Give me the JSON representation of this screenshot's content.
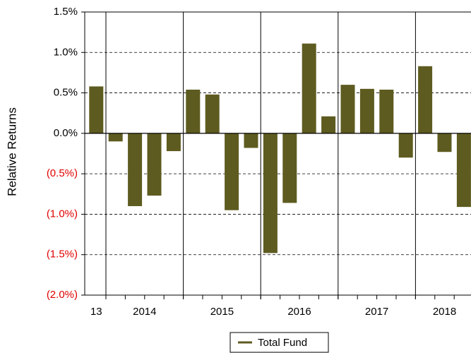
{
  "chart_data": {
    "type": "bar",
    "y_axis_label": "Relative Returns",
    "categories": [
      null,
      null,
      null,
      null,
      null,
      null,
      null,
      null,
      null,
      null,
      null,
      null,
      null,
      null,
      null,
      null,
      null,
      null,
      null,
      null
    ],
    "groups": [
      {
        "label": "13",
        "size": 1
      },
      {
        "label": "2014",
        "size": 4
      },
      {
        "label": "2015",
        "size": 4
      },
      {
        "label": "2016",
        "size": 4
      },
      {
        "label": "2017",
        "size": 4
      },
      {
        "label": "2018",
        "size": 3
      }
    ],
    "series": [
      {
        "name": "Total Fund",
        "color": "#5e5b20",
        "values": [
          0.58,
          -0.1,
          -0.9,
          -0.77,
          -0.22,
          0.54,
          0.48,
          -0.95,
          -0.18,
          -1.48,
          -0.86,
          1.11,
          0.21,
          0.6,
          0.55,
          0.54,
          -0.3,
          0.83,
          -0.23,
          -0.91
        ]
      }
    ],
    "ylim": [
      -2.0,
      1.5
    ],
    "yticks": [
      {
        "value": -2.0,
        "label": "(2.0%)"
      },
      {
        "value": -1.5,
        "label": "(1.5%)"
      },
      {
        "value": -1.0,
        "label": "(1.0%)"
      },
      {
        "value": -0.5,
        "label": "(0.5%)"
      },
      {
        "value": 0,
        "label": "0.0%"
      },
      {
        "value": 0.5,
        "label": "0.5%"
      },
      {
        "value": 1.0,
        "label": "1.0%"
      },
      {
        "value": 1.5,
        "label": "1.5%"
      }
    ],
    "negative_tick_color": "#e00000",
    "grid": true,
    "legend": "bottom"
  }
}
